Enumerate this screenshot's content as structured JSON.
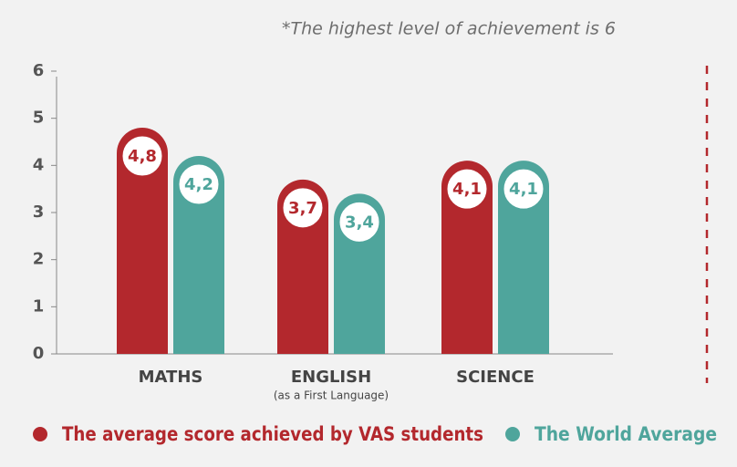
{
  "chart_data": {
    "type": "bar",
    "note": "*The highest level of achievement is 6",
    "categories": [
      "MATHS",
      "ENGLISH",
      "SCIENCE"
    ],
    "category_subtitles": [
      null,
      "(as a First Language)",
      null
    ],
    "series": [
      {
        "name": "The average score achieved by VAS students",
        "color": "#b3282d",
        "values": [
          4.8,
          3.7,
          4.1
        ],
        "value_labels": [
          "4,8",
          "3,7",
          "4,1"
        ]
      },
      {
        "name": "The World Average",
        "color": "#4fa59c",
        "values": [
          4.2,
          3.4,
          4.1
        ],
        "value_labels": [
          "4,2",
          "3,4",
          "4,1"
        ]
      }
    ],
    "ylim": [
      0,
      6
    ],
    "yticks": [
      0,
      1,
      2,
      3,
      4,
      5,
      6
    ],
    "grid": false
  }
}
